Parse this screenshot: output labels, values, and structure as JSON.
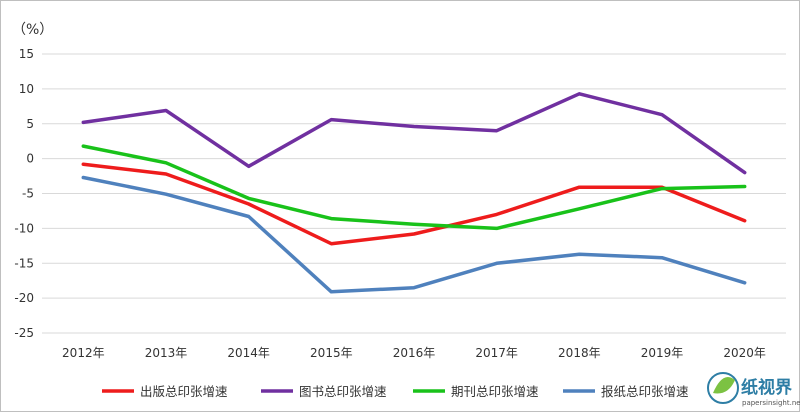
{
  "chart_data": {
    "type": "line",
    "unit_label": "（%）",
    "categories": [
      "2012年",
      "2013年",
      "2014年",
      "2015年",
      "2016年",
      "2017年",
      "2018年",
      "2019年",
      "2020年"
    ],
    "ylim": [
      -25,
      15
    ],
    "yticks": [
      15,
      10,
      5,
      0,
      -5,
      -10,
      -15,
      -20,
      -25
    ],
    "grid": true,
    "legend_position": "bottom",
    "series": [
      {
        "name": "出版总印张增速",
        "color": "#ee1c1c",
        "values": [
          -0.8,
          -2.2,
          -6.5,
          -12.2,
          -10.8,
          -8.0,
          -4.1,
          -4.1,
          -8.9
        ]
      },
      {
        "name": "图书总印张增速",
        "color": "#7030a0",
        "values": [
          5.2,
          6.9,
          -1.1,
          5.6,
          4.6,
          4.0,
          9.3,
          6.3,
          -2.0
        ]
      },
      {
        "name": "期刊总印张增速",
        "color": "#19c21a",
        "values": [
          1.8,
          -0.6,
          -5.7,
          -8.6,
          -9.4,
          -10.0,
          -7.2,
          -4.3,
          -4.0
        ]
      },
      {
        "name": "报纸总印张增速",
        "color": "#4f81bd",
        "values": [
          -2.7,
          -5.1,
          -8.3,
          -19.1,
          -18.5,
          -15.0,
          -13.7,
          -14.2,
          -17.8
        ]
      }
    ]
  },
  "watermark": {
    "text": "纸视界",
    "subtext": "papersinsight.net"
  }
}
